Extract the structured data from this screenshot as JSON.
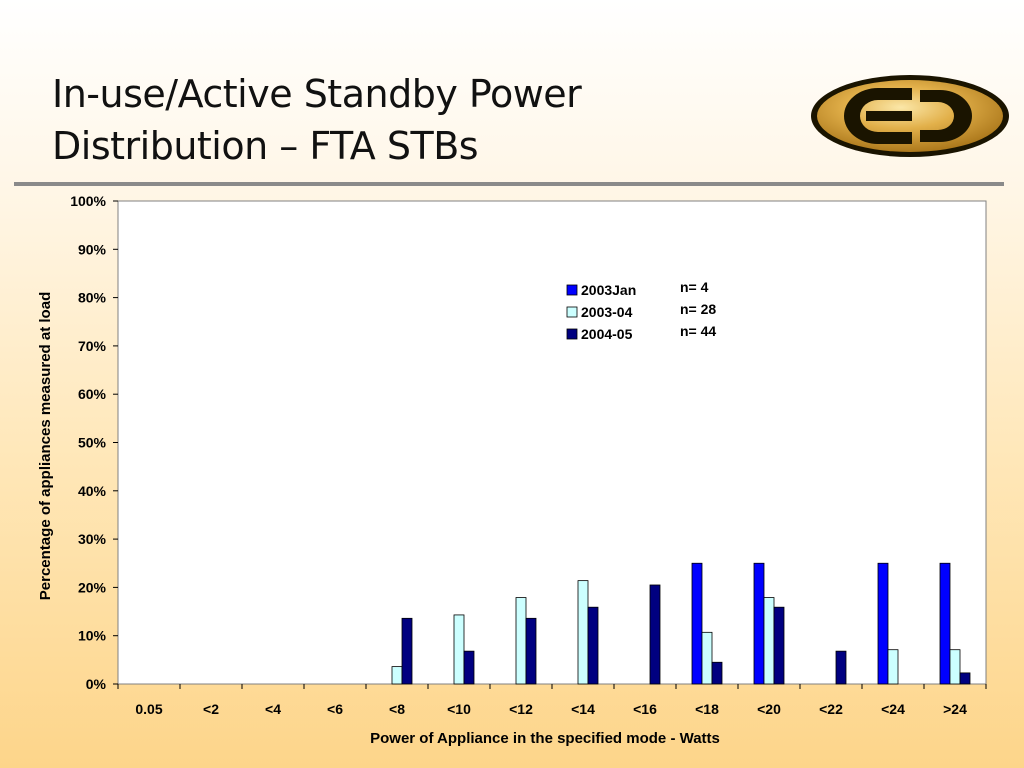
{
  "slide": {
    "title_line1": "In-use/Active Standby Power",
    "title_line2": "Distribution – FTA STBs"
  },
  "logo": {
    "icon": "e-circle-logo-icon"
  },
  "colors": {
    "series": [
      "#0000ff",
      "#ccffff",
      "#000080"
    ],
    "bar_stroke": "#000000",
    "plot_border": "#808080",
    "plot_bg": "#ffffff"
  },
  "chart_data": {
    "type": "bar",
    "title": "",
    "xlabel": "Power of Appliance in the specified mode - Watts",
    "ylabel": "Percentage of appliances measured at load",
    "ylim": [
      0,
      100
    ],
    "yticks": [
      "0%",
      "10%",
      "20%",
      "30%",
      "40%",
      "50%",
      "60%",
      "70%",
      "80%",
      "90%",
      "100%"
    ],
    "categories": [
      "0.05",
      "<2",
      "<4",
      "<6",
      "<8",
      "<10",
      "<12",
      "<14",
      "<16",
      "<18",
      "<20",
      "<22",
      "<24",
      ">24"
    ],
    "series": [
      {
        "name": "2003Jan",
        "n_label": "n= 4",
        "values": [
          0,
          0,
          0,
          0,
          0,
          0,
          0,
          0,
          0,
          25,
          25,
          0,
          25,
          25
        ]
      },
      {
        "name": "2003-04",
        "n_label": "n= 28",
        "values": [
          0,
          0,
          0,
          0,
          3.6,
          14.3,
          17.9,
          21.4,
          0,
          10.7,
          17.9,
          0,
          7.1,
          7.1
        ]
      },
      {
        "name": "2004-05",
        "n_label": "n= 44",
        "values": [
          0,
          0,
          0,
          0,
          13.6,
          6.8,
          13.6,
          15.9,
          20.5,
          4.5,
          15.9,
          6.8,
          0,
          2.3
        ]
      }
    ],
    "grid": false,
    "legend_position": "top-center"
  }
}
